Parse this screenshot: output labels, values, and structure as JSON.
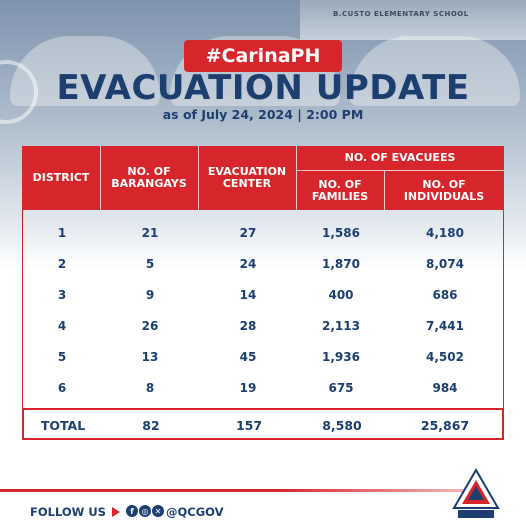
{
  "background": {
    "sign_text": "B.CUSTO ELEMENTARY SCHOOL"
  },
  "header": {
    "hashtag": "#CarinaPH",
    "title": "EVACUATION UPDATE",
    "subtitle": "as of July 24, 2024  |  2:00 PM"
  },
  "table": {
    "headers": {
      "district": "DISTRICT",
      "barangays": "NO. OF BARANGAYS",
      "center": "EVACUATION CENTER",
      "evacuees": "NO. OF EVACUEES",
      "families": "NO. OF FAMILIES",
      "individuals": "NO. OF INDIVIDUALS"
    },
    "rows": [
      {
        "district": "1",
        "barangays": "21",
        "center": "27",
        "families": "1,586",
        "individuals": "4,180"
      },
      {
        "district": "2",
        "barangays": "5",
        "center": "24",
        "families": "1,870",
        "individuals": "8,074"
      },
      {
        "district": "3",
        "barangays": "9",
        "center": "14",
        "families": "400",
        "individuals": "686"
      },
      {
        "district": "4",
        "barangays": "26",
        "center": "28",
        "families": "2,113",
        "individuals": "7,441"
      },
      {
        "district": "5",
        "barangays": "13",
        "center": "45",
        "families": "1,936",
        "individuals": "4,502"
      },
      {
        "district": "6",
        "barangays": "8",
        "center": "19",
        "families": "675",
        "individuals": "984"
      }
    ],
    "total": {
      "label": "TOTAL",
      "barangays": "82",
      "center": "157",
      "families": "8,580",
      "individuals": "25,867"
    }
  },
  "footer": {
    "follow_label": "FOLLOW US",
    "handle": "@QCGOV",
    "social_icons": [
      "facebook-icon",
      "instagram-icon",
      "twitter-icon"
    ]
  },
  "colors": {
    "accent_red": "#d7262b",
    "navy": "#1c3f70"
  }
}
